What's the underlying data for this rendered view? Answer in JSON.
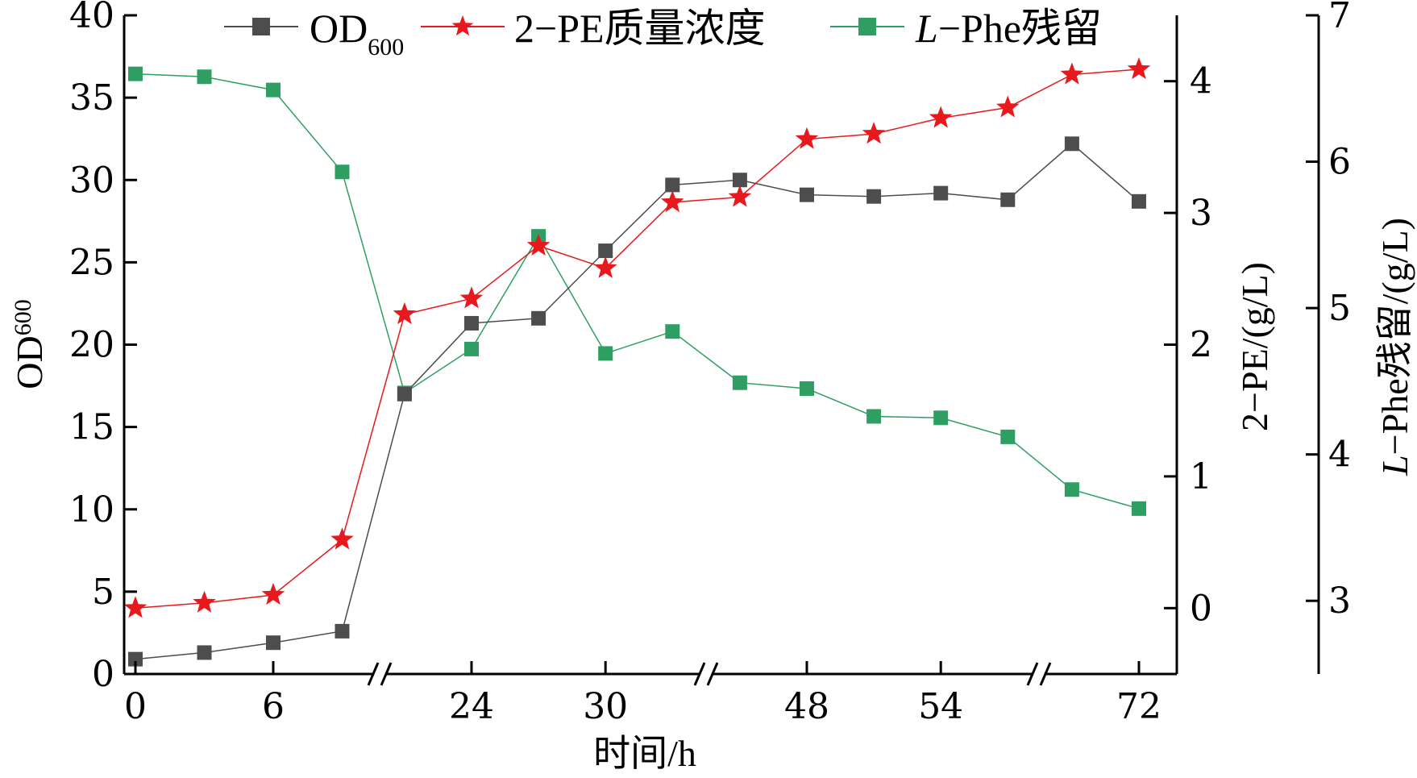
{
  "chart_data": {
    "type": "line",
    "title": "",
    "xlabel": "时间/h",
    "x_ticks": [
      "0",
      "6",
      "24",
      "30",
      "48",
      "54",
      "72"
    ],
    "x_tick_values": [
      0,
      6,
      24,
      30,
      48,
      54,
      72
    ],
    "x_breaks": [
      [
        9,
        21
      ],
      [
        33,
        45
      ],
      [
        57,
        69
      ]
    ],
    "x": [
      0,
      3,
      6,
      9,
      21,
      24,
      27,
      30,
      33,
      45,
      48,
      51,
      54,
      57,
      69,
      72
    ],
    "axes": {
      "left": {
        "label_main": "OD",
        "label_sub": "600",
        "ylim": [
          0,
          40
        ],
        "ticks": [
          "0",
          "5",
          "10",
          "15",
          "20",
          "25",
          "30",
          "35",
          "40"
        ],
        "tick_values": [
          0,
          5,
          10,
          15,
          20,
          25,
          30,
          35,
          40
        ]
      },
      "right1": {
        "label": "2−PE/(g/L)",
        "ylim": [
          -0.5,
          4.5
        ],
        "ticks": [
          "0",
          "1",
          "2",
          "3",
          "4"
        ],
        "tick_values": [
          0,
          1,
          2,
          3,
          4
        ]
      },
      "right2": {
        "label_italic": "L",
        "label_rest": "−Phe残留/(g/L)",
        "ylim": [
          2.5,
          7
        ],
        "ticks": [
          "3",
          "4",
          "5",
          "6",
          "7"
        ],
        "tick_values": [
          3,
          4,
          5,
          6,
          7
        ]
      }
    },
    "series": [
      {
        "name_main": "OD",
        "name_sub": "600",
        "axis": "left",
        "marker": "square",
        "color": "#4d4d4d",
        "values": [
          0.9,
          1.3,
          1.9,
          2.6,
          17.0,
          21.3,
          21.6,
          25.7,
          29.7,
          30.0,
          29.1,
          29.0,
          29.2,
          28.8,
          32.2,
          28.7
        ]
      },
      {
        "name": "2−PE质量浓度",
        "axis": "right1",
        "marker": "star",
        "color": "#e8191c",
        "values": [
          0.0,
          0.04,
          0.1,
          0.52,
          2.23,
          2.35,
          2.75,
          2.58,
          3.08,
          3.12,
          3.56,
          3.6,
          3.72,
          3.8,
          4.05,
          4.09
        ]
      },
      {
        "name_italic": "L",
        "name_rest": "−Phe残留",
        "axis": "right2",
        "marker": "square",
        "color": "#2e9e62",
        "values": [
          6.6,
          6.58,
          6.49,
          5.93,
          4.42,
          4.72,
          5.49,
          4.69,
          4.84,
          4.49,
          4.45,
          4.26,
          4.25,
          4.12,
          3.76,
          3.63
        ]
      }
    ],
    "legend_position": "top",
    "grid": false
  }
}
